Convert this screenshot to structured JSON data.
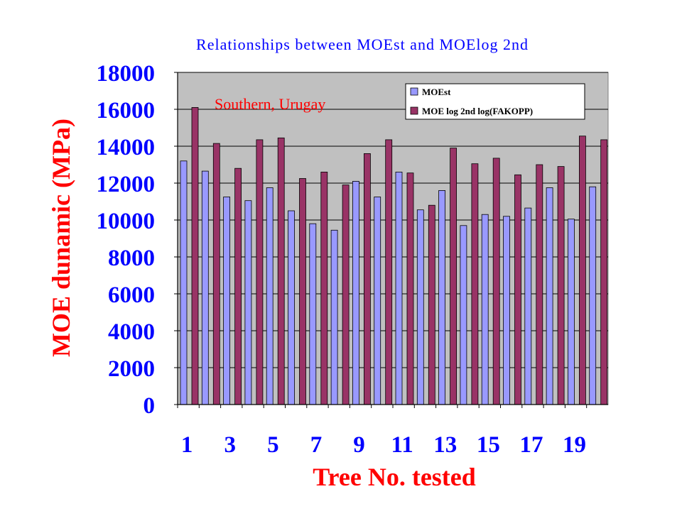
{
  "chart_data": {
    "type": "bar",
    "title": "Relationships between MOEst and MOElog 2nd",
    "annotation": "Southern, Urugay",
    "xlabel": "Tree No. tested",
    "ylabel": "MOE dunamic (MPa)",
    "ylim": [
      0,
      18000
    ],
    "yticks": [
      0,
      2000,
      4000,
      6000,
      8000,
      10000,
      12000,
      14000,
      16000,
      18000
    ],
    "categories": [
      1,
      2,
      3,
      4,
      5,
      6,
      7,
      8,
      9,
      10,
      11,
      12,
      13,
      14,
      15,
      16,
      17,
      18,
      19,
      20
    ],
    "xtick_labels": [
      "1",
      "",
      "3",
      "",
      "5",
      "",
      "7",
      "",
      "9",
      "",
      "11",
      "",
      "13",
      "",
      "15",
      "",
      "17",
      "",
      "19",
      ""
    ],
    "grid": true,
    "legend_position": "top-right",
    "plot_background": "#c0c0c0",
    "series": [
      {
        "name": "MOEst",
        "color": "#9999ff",
        "values": [
          13200,
          12650,
          11250,
          11050,
          11750,
          10500,
          9800,
          9450,
          12100,
          11250,
          12600,
          10550,
          11600,
          9700,
          10300,
          10200,
          10650,
          11750,
          10050,
          11800
        ]
      },
      {
        "name": "MOE log 2nd log(FAKOPP)",
        "color": "#993366",
        "values": [
          16100,
          14150,
          12800,
          14350,
          14450,
          12250,
          12600,
          11900,
          13600,
          14350,
          12550,
          10800,
          13900,
          13050,
          13350,
          12450,
          13000,
          12900,
          14550,
          14350
        ]
      }
    ]
  }
}
